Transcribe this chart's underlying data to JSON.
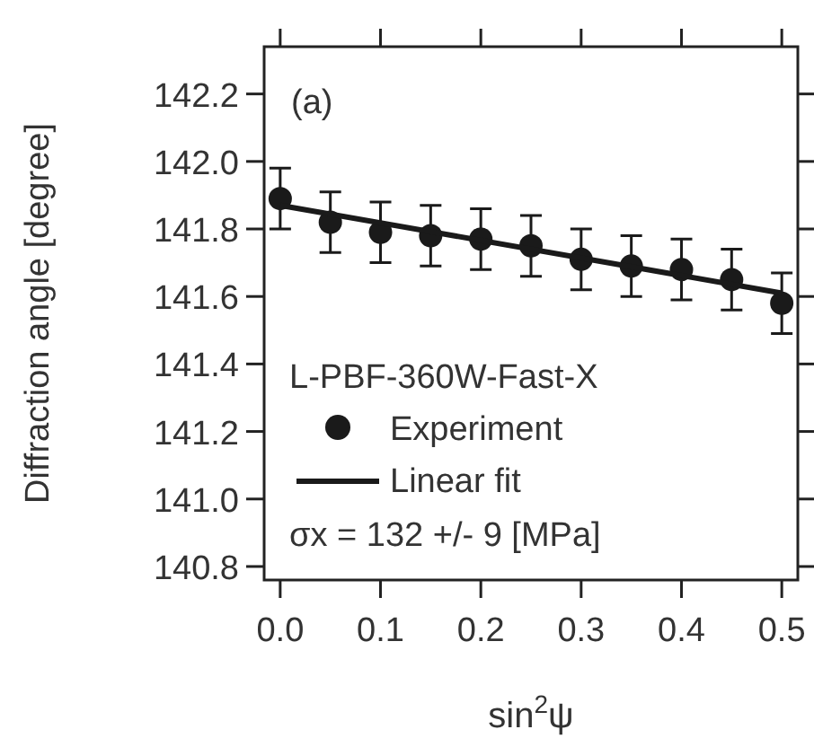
{
  "chart_data": {
    "type": "scatter",
    "xlabel": "sin$^{2}$ψ",
    "ylabel": "Diffraction angle [degree]",
    "legend_title": "L-PBF-360W-Fast-X",
    "x": [
      0,
      0.05,
      0.1,
      0.15,
      0.2,
      0.25,
      0.3,
      0.35,
      0.4,
      0.45,
      0.5
    ],
    "series": [
      {
        "name": "Experiment",
        "color": "#1a1a1a",
        "marker": "circle",
        "values": [
          141.89,
          141.82,
          141.79,
          141.78,
          141.77,
          141.75,
          141.71,
          141.69,
          141.68,
          141.65,
          141.58
        ],
        "errors": [
          0.09,
          0.09,
          0.09,
          0.09,
          0.09,
          0.09,
          0.09,
          0.09,
          0.09,
          0.09,
          0.09
        ]
      },
      {
        "name": "Linear fit",
        "type": "line",
        "color": "#1a1a1a",
        "line_style": "solid",
        "x": [
          0,
          0.5
        ],
        "values": [
          141.87,
          141.61
        ]
      }
    ],
    "xlim": [
      -0.016,
      0.516
    ],
    "ylim": [
      140.76,
      142.34
    ],
    "xticks": [
      {
        "value": 0,
        "label": "0.0"
      },
      0.1,
      0.2,
      0.3,
      0.4,
      0.5
    ],
    "yticks": [
      140.8,
      {
        "value": 141,
        "label": "141.0"
      },
      141.2,
      141.4,
      141.6,
      141.8,
      {
        "value": 142,
        "label": "142.0"
      },
      142.2
    ],
    "annotations": [
      "(a)",
      "σx = 132 +/- 9 [MPa]"
    ],
    "legend": "bottom left",
    "grid": false
  }
}
